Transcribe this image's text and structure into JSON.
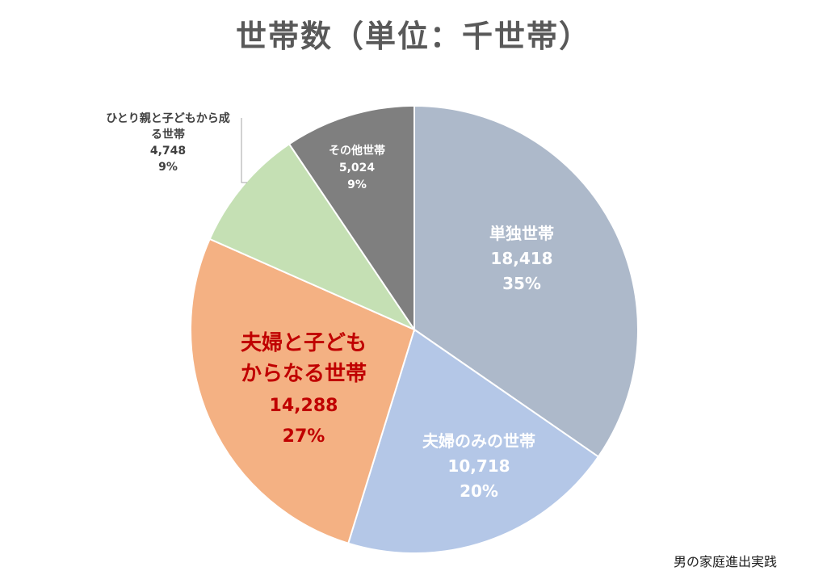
{
  "chart_data": {
    "type": "pie",
    "title": "世帯数（単位：千世帯）",
    "slices": [
      {
        "label_lines": [
          "単独世帯"
        ],
        "value": 18418,
        "value_text": "18,418",
        "percent_text": "35%",
        "color": "#adb9ca",
        "label_color": "#ffffff"
      },
      {
        "label_lines": [
          "夫婦のみの世帯"
        ],
        "value": 10718,
        "value_text": "10,718",
        "percent_text": "20%",
        "color": "#b4c7e7",
        "label_color": "#ffffff"
      },
      {
        "label_lines": [
          "夫婦と子ども",
          "からなる世帯"
        ],
        "value": 14288,
        "value_text": "14,288",
        "percent_text": "27%",
        "color": "#f4b183",
        "label_color": "#c00000"
      },
      {
        "label_lines": [
          "ひとり親と子どもから成",
          "る世帯"
        ],
        "value": 4748,
        "value_text": "4,748",
        "percent_text": "9%",
        "color": "#c5e0b4",
        "label_color": "#404040"
      },
      {
        "label_lines": [
          "その他世帯"
        ],
        "value": 5024,
        "value_text": "5,024",
        "percent_text": "9%",
        "color": "#7f7f7f",
        "label_color": "#ffffff"
      }
    ],
    "legend": "none"
  },
  "footer": {
    "credit": "男の家庭進出実践"
  }
}
